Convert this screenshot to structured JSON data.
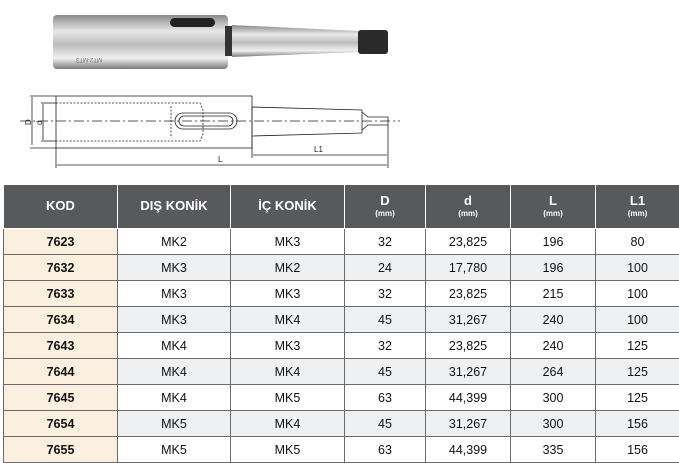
{
  "figure": {
    "photo_marking": "MT2-MT3",
    "dim_labels": {
      "D": "D",
      "d": "d",
      "L": "L",
      "L1": "L1"
    }
  },
  "table": {
    "headers": [
      {
        "label": "KOD",
        "unit": ""
      },
      {
        "label": "DIŞ KONİK",
        "unit": ""
      },
      {
        "label": "İÇ KONİK",
        "unit": ""
      },
      {
        "label": "D",
        "unit": "(mm)"
      },
      {
        "label": "d",
        "unit": "(mm)"
      },
      {
        "label": "L",
        "unit": "(mm)"
      },
      {
        "label": "L1",
        "unit": "(mm)"
      }
    ],
    "rows": [
      [
        "7623",
        "MK2",
        "MK3",
        "32",
        "23,825",
        "196",
        "80"
      ],
      [
        "7632",
        "MK3",
        "MK2",
        "24",
        "17,780",
        "196",
        "100"
      ],
      [
        "7633",
        "MK3",
        "MK3",
        "32",
        "23,825",
        "215",
        "100"
      ],
      [
        "7634",
        "MK3",
        "MK4",
        "45",
        "31,267",
        "240",
        "100"
      ],
      [
        "7643",
        "MK4",
        "MK3",
        "32",
        "23,825",
        "240",
        "125"
      ],
      [
        "7644",
        "MK4",
        "MK4",
        "45",
        "31,267",
        "264",
        "125"
      ],
      [
        "7645",
        "MK4",
        "MK5",
        "63",
        "44,399",
        "300",
        "125"
      ],
      [
        "7654",
        "MK5",
        "MK4",
        "45",
        "31,267",
        "300",
        "156"
      ],
      [
        "7655",
        "MK5",
        "MK5",
        "63",
        "44,399",
        "335",
        "156"
      ]
    ]
  },
  "colors": {
    "header": "#58595b",
    "kod_col": "#fbf0e0",
    "alt_row": "#eff0f2"
  }
}
